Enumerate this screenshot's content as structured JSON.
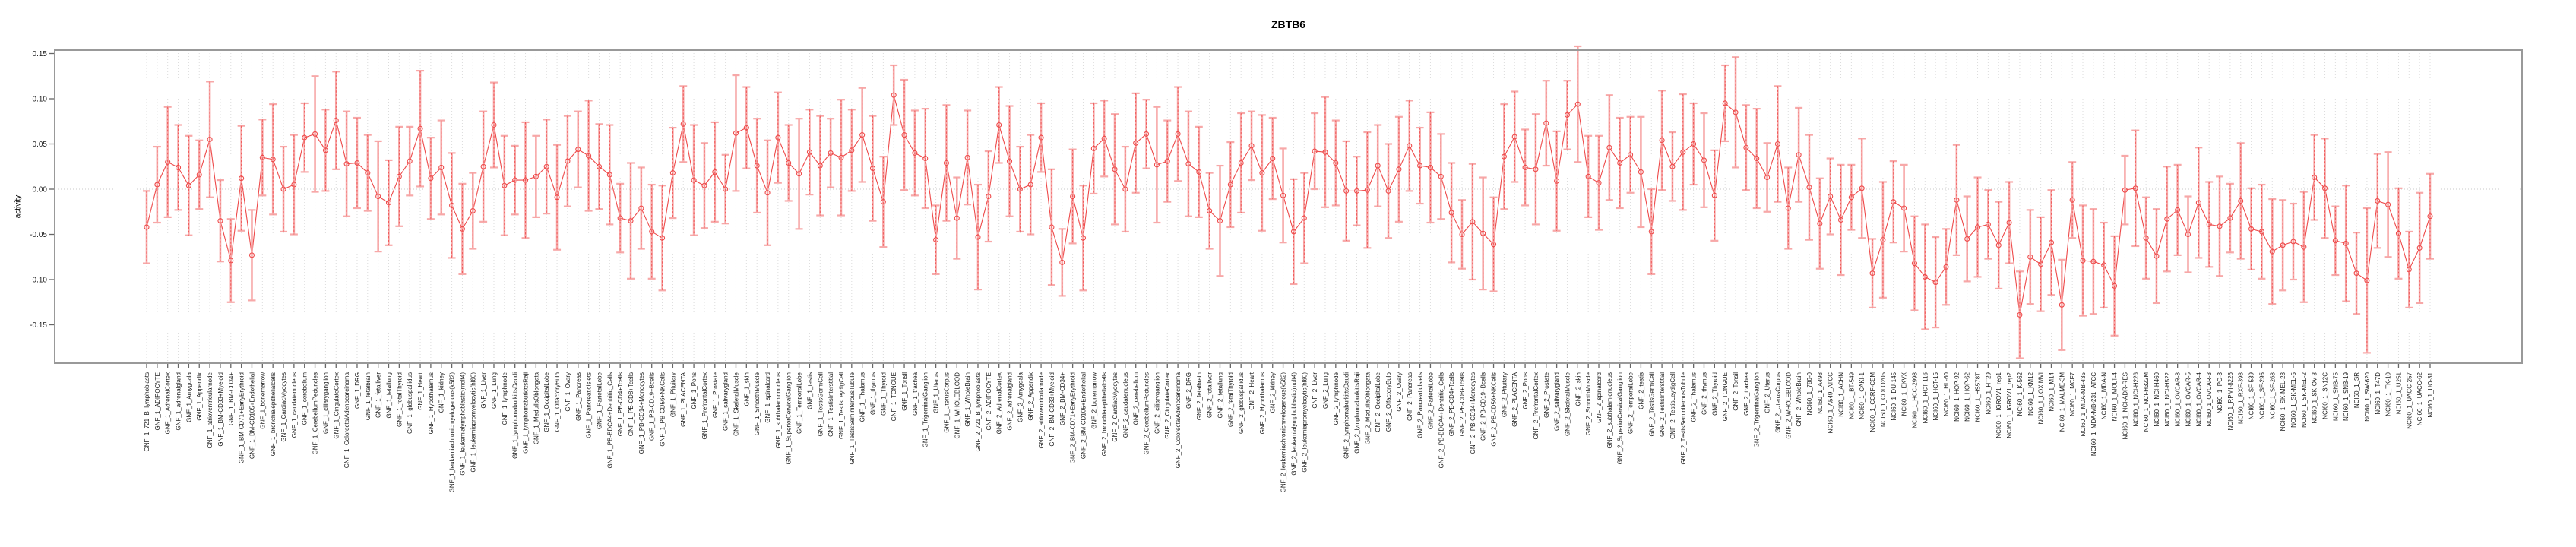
{
  "chart_data": {
    "type": "scatter",
    "title": "ZBTB6",
    "ylabel": "activity",
    "xlabel": "",
    "ylim": [
      -0.192,
      0.154
    ],
    "yticks": [
      0.15,
      0.1,
      0.05,
      0.0,
      -0.05,
      -0.1,
      -0.15
    ],
    "grid": "vertical dotted line at every category; horizontal dotted line at y=0",
    "legend_position": "none",
    "marker": "open-circle with error bars, points connected by line",
    "colors": {
      "line": "#ee4a4a",
      "bar": "#f7a8a8",
      "grid": "#dcdcdc",
      "zero": "#c9c9c9",
      "frame": "#999999",
      "axis": "#666666",
      "text": "#1a1a1a"
    },
    "labels": [
      "GNF_1_721_B_lymphoblasts",
      "GNF_1_ADIPOCYTE",
      "GNF_1_AdrenalCortex",
      "GNF_1_adrenalgland",
      "GNF_1_Amygdala",
      "GNF_1_Appendix",
      "GNF_1_atrioventricularnode",
      "GNF_1_BM-CD33+Myeloid",
      "GNF_1_BM-CD34+",
      "GNF_1_BM-CD71+EarlyErythroid",
      "GNF_1_BM-CD105+Endothelial",
      "GNF_1_bonemarrow",
      "GNF_1_bronchialepithelialcells",
      "GNF_1_CardiacMyocytes",
      "GNF_1_caudatenucleus",
      "GNF_1_cerebellum",
      "GNF_1_CerebellumPeduncles",
      "GNF_1_ciliaryganglion",
      "GNF_1_CingulateCortex",
      "GNF_1_ColorectalAdenocarcinoma",
      "GNF_1_DRG",
      "GNF_1_fetalbrain",
      "GNF_1_fetalliver",
      "GNF_1_fetallung",
      "GNF_1_fetalThyroid",
      "GNF_1_globuspallidus",
      "GNF_1_Heart",
      "GNF_1_Hypothalamus",
      "GNF_1_kidney",
      "GNF_1_leukemiachronicmyelogenous(k562)",
      "GNF_1_leukemialymphoblastic(molt4)",
      "GNF_1_leukemiapromyelocytic(hl60)",
      "GNF_1_Liver",
      "GNF_1_Lung",
      "GNF_1_lymphnode",
      "GNF_1_lymphomaburkittsDaudi",
      "GNF_1_lymphomaburkittsRaji",
      "GNF_1_MedullaOblongata",
      "GNF_1_OccipitalLobe",
      "GNF_1_OlfactoryBulb",
      "GNF_1_Ovary",
      "GNF_1_Pancreas",
      "GNF_1_PancreaticIslets",
      "GNF_1_ParietalLobe",
      "GNF_1_PB-BDCA4+Dentritic_Cells",
      "GNF_1_PB-CD4+Tcells",
      "GNF_1_PB-CD8+Tcells",
      "GNF_1_PB-CD14+Monocytes",
      "GNF_1_PB-CD19+Bcells",
      "GNF_1_PB-CD56+NKCells",
      "GNF_1_Pituitary",
      "GNF_1_PLACENTA",
      "GNF_1_Pons",
      "GNF_1_PrefrontalCortex",
      "GNF_1_Prostate",
      "GNF_1_salivarygland",
      "GNF_1_SkeletalMuscle",
      "GNF_1_skin",
      "GNF_1_SmoothMuscle",
      "GNF_1_spinalcord",
      "GNF_1_subthalamicnucleus",
      "GNF_1_SuperiorCervicalGanglion",
      "GNF_1_TemporalLobe",
      "GNF_1_testis",
      "GNF_1_TestisGermCell",
      "GNF_1_TestisInterstitial",
      "GNF_1_TestisLeydigCell",
      "GNF_1_TestisSeminiferousTubule",
      "GNF_1_Thalamus",
      "GNF_1_thymus",
      "GNF_1_Thyroid",
      "GNF_1_TONGUE",
      "GNF_1_Tonsil",
      "GNF_1_trachea",
      "GNF_1_TrigeminalGanglion",
      "GNF_1_Uterus",
      "GNF_1_UterusCorpus",
      "GNF_1_WHOLEBLOOD",
      "GNF_1_WholeBrain",
      "GNF_2_721_B_lymphoblasts",
      "GNF_2_ADIPOCYTE",
      "GNF_2_AdrenalCortex",
      "GNF_2_adrenalgland",
      "GNF_2_Amygdala",
      "GNF_2_Appendix",
      "GNF_2_atrioventricularnode",
      "GNF_2_BM-CD33+Myeloid",
      "GNF_2_BM-CD34+",
      "GNF_2_BM-CD71+EarlyErythroid",
      "GNF_2_BM-CD105+Endothelial",
      "GNF_2_bonemarrow",
      "GNF_2_bronchialepithelialcells",
      "GNF_2_CardiacMyocytes",
      "GNF_2_caudatenucleus",
      "GNF_2_cerebellum",
      "GNF_2_CerebellumPeduncles",
      "GNF_2_ciliaryganglion",
      "GNF_2_CingulateCortex",
      "GNF_2_ColorectalAdenocarcinoma",
      "GNF_2_DRG",
      "GNF_2_fetalbrain",
      "GNF_2_fetalliver",
      "GNF_2_fetallung",
      "GNF_2_fetalThyroid",
      "GNF_2_globuspallidus",
      "GNF_2_Heart",
      "GNF_2_Hypothalamus",
      "GNF_2_kidney",
      "GNF_2_leukemiachronicmyelogenous(k562)",
      "GNF_2_leukemialymphoblastic(molt4)",
      "GNF_2_leukemiapromyelocytic(hl60)",
      "GNF_2_Liver",
      "GNF_2_Lung",
      "GNF_2_lymphnode",
      "GNF_2_lymphomaburkittsDaudi",
      "GNF_2_lymphomaburkittsRaji",
      "GNF_2_MedullaOblongata",
      "GNF_2_OccipitalLobe",
      "GNF_2_OlfactoryBulb",
      "GNF_2_Ovary",
      "GNF_2_Pancreas",
      "GNF_2_PancreaticIslets",
      "GNF_2_ParietalLobe",
      "GNF_2_PB-BDCA4+Dentritic_Cells",
      "GNF_2_PB-CD4+Tcells",
      "GNF_2_PB-CD8+Tcells",
      "GNF_2_PB-CD14+Monocytes",
      "GNF_2_PB-CD19+Bcells",
      "GNF_2_PB-CD56+NKCells",
      "GNF_2_Pituitary",
      "GNF_2_PLACENTA",
      "GNF_2_Pons",
      "GNF_2_PrefrontalCortex",
      "GNF_2_Prostate",
      "GNF_2_salivarygland",
      "GNF_2_SkeletalMuscle",
      "GNF_2_skin",
      "GNF_2_SmoothMuscle",
      "GNF_2_spinalcord",
      "GNF_2_subthalamicnucleus",
      "GNF_2_SuperiorCervicalGanglion",
      "GNF_2_TemporalLobe",
      "GNF_2_testis",
      "GNF_2_TestisGermCell",
      "GNF_2_TestisInterstitial",
      "GNF_2_TestisLeydigCell",
      "GNF_2_TestisSeminiferousTubule",
      "GNF_2_Thalamus",
      "GNF_2_thymus",
      "GNF_2_Thyroid",
      "GNF_2_TONGUE",
      "GNF_2_Tonsil",
      "GNF_2_trachea",
      "GNF_2_TrigeminalGanglion",
      "GNF_2_Uterus",
      "GNF_2_UterusCorpus",
      "GNF_2_WHOLEBLOOD",
      "GNF_2_WholeBrain",
      "NCI60_1_786-0",
      "NCI60_1_A498",
      "NCI60_1_A549_ATCC",
      "NCI60_1_ACHN",
      "NCI60_1_BT-549",
      "NCI60_1_CAKI-1",
      "NCI60_1_CCRF-CEM",
      "NCI60_1_COLO205",
      "NCI60_1_DU-145",
      "NCI60_1_EKVX",
      "NCI60_1_HCC-2998",
      "NCI60_1_HCT-116",
      "NCI60_1_HCT-15",
      "NCI60_1_HL-60",
      "NCI60_1_HOP-92",
      "NCI60_1_HOP-62",
      "NCI60_1_HS578T",
      "NCI60_1_HT29",
      "NCI60_1_IGROV1_rep1",
      "NCI60_1_IGROV1_rep2",
      "NCI60_1_K-562",
      "NCI60_1_KM12",
      "NCI60_1_LOXIMVI",
      "NCI60_1_M14",
      "NCI60_1_MALME-3M",
      "NCI60_1_MCF7",
      "NCI60_1_MDA-MB-435",
      "NCI60_1_MDA-MB-231_ATCC",
      "NCI60_1_MDA-N",
      "NCI60_1_MOLT-4",
      "NCI60_1_NCI-ADR-RES",
      "NCI60_1_NCI-H226",
      "NCI60_1_NCI-H322M",
      "NCI60_1_NCI-H460",
      "NCI60_1_NCI-H522",
      "NCI60_1_OVCAR-8",
      "NCI60_1_OVCAR-5",
      "NCI60_1_OVCAR-4",
      "NCI60_1_OVCAR-3",
      "NCI60_1_PC-3",
      "NCI60_1_RPMI-8226",
      "NCI60_1_RXF-393",
      "NCI60_1_SF-539",
      "NCI60_1_SF-295",
      "NCI60_1_SF-268",
      "NCI60_1_SK-MEL-28",
      "NCI60_1_SK-MEL-5",
      "NCI60_1_SK-MEL-2",
      "NCI60_1_SK-OV-3",
      "NCI60_1_SN12C",
      "NCI60_1_SNB-75",
      "NCI60_1_SNB-19",
      "NCI60_1_SR",
      "NCI60_1_SW-620",
      "NCI60_1_T47D",
      "NCI60_1_TK-10",
      "NCI60_1_U251",
      "NCI60_1_UACC-257",
      "NCI60_1_UACC-62",
      "NCI60_1_UO-31"
    ],
    "values": [
      -0.042,
      0.005,
      0.03,
      0.024,
      0.004,
      0.016,
      0.055,
      -0.035,
      -0.079,
      0.012,
      -0.073,
      0.035,
      0.033,
      0.0,
      0.005,
      0.057,
      0.061,
      0.043,
      0.076,
      0.028,
      0.029,
      0.018,
      -0.008,
      -0.015,
      0.014,
      0.031,
      0.067,
      0.012,
      0.024,
      -0.018,
      -0.044,
      -0.024,
      0.025,
      0.071,
      0.004,
      0.01,
      0.01,
      0.014,
      0.025,
      -0.009,
      0.031,
      0.044,
      0.037,
      0.025,
      0.016,
      -0.032,
      -0.035,
      -0.021,
      -0.047,
      -0.054,
      0.018,
      0.072,
      0.01,
      0.004,
      0.019,
      0.0,
      0.062,
      0.068,
      0.026,
      -0.004,
      0.057,
      0.029,
      0.017,
      0.041,
      0.026,
      0.04,
      0.035,
      0.043,
      0.06,
      0.023,
      -0.014,
      0.104,
      0.06,
      0.04,
      0.034,
      -0.056,
      0.029,
      -0.032,
      0.035,
      -0.053,
      -0.008,
      0.071,
      0.031,
      0.0,
      0.005,
      0.057,
      -0.042,
      -0.081,
      -0.008,
      -0.054,
      0.045,
      0.056,
      0.022,
      0.0,
      0.051,
      0.061,
      0.027,
      0.031,
      0.061,
      0.028,
      0.019,
      -0.024,
      -0.035,
      0.005,
      0.029,
      0.048,
      0.018,
      0.034,
      -0.007,
      -0.047,
      -0.032,
      0.042,
      0.041,
      0.029,
      -0.002,
      -0.002,
      -0.001,
      0.026,
      -0.002,
      0.022,
      0.048,
      0.026,
      0.024,
      0.014,
      -0.026,
      -0.05,
      -0.036,
      -0.049,
      -0.061,
      0.036,
      0.058,
      0.024,
      0.022,
      0.073,
      0.009,
      0.082,
      0.094,
      0.014,
      0.007,
      0.046,
      0.029,
      0.038,
      0.019,
      -0.047,
      0.054,
      0.025,
      0.041,
      0.05,
      0.032,
      -0.007,
      0.095,
      0.085,
      0.046,
      0.034,
      0.013,
      0.05,
      -0.021,
      0.038,
      0.002,
      -0.038,
      -0.008,
      -0.034,
      -0.009,
      0.001,
      -0.093,
      -0.056,
      -0.014,
      -0.021,
      -0.082,
      -0.097,
      -0.103,
      -0.086,
      -0.012,
      -0.055,
      -0.042,
      -0.039,
      -0.062,
      -0.037,
      -0.139,
      -0.075,
      -0.083,
      -0.059,
      -0.128,
      -0.012,
      -0.079,
      -0.08,
      -0.084,
      -0.107,
      -0.001,
      0.001,
      -0.054,
      -0.074,
      -0.033,
      -0.023,
      -0.05,
      -0.015,
      -0.039,
      -0.041,
      -0.032,
      -0.013,
      -0.044,
      -0.047,
      -0.069,
      -0.062,
      -0.058,
      -0.064,
      0.013,
      0.001,
      -0.057,
      -0.06,
      -0.093,
      -0.101,
      -0.013,
      -0.017,
      -0.049,
      -0.089,
      -0.065,
      -0.03
    ],
    "errors": [
      0.04,
      0.042,
      0.061,
      0.047,
      0.055,
      0.038,
      0.064,
      0.045,
      0.046,
      0.058,
      0.05,
      0.042,
      0.061,
      0.047,
      0.055,
      0.038,
      0.064,
      0.045,
      0.054,
      0.058,
      0.05,
      0.042,
      0.061,
      0.047,
      0.055,
      0.038,
      0.064,
      0.045,
      0.052,
      0.058,
      0.05,
      0.042,
      0.061,
      0.047,
      0.055,
      0.038,
      0.064,
      0.045,
      0.052,
      0.058,
      0.05,
      0.042,
      0.061,
      0.047,
      0.055,
      0.038,
      0.064,
      0.045,
      0.052,
      0.058,
      0.05,
      0.042,
      0.061,
      0.047,
      0.055,
      0.038,
      0.064,
      0.045,
      0.052,
      0.058,
      0.05,
      0.042,
      0.061,
      0.047,
      0.055,
      0.038,
      0.064,
      0.045,
      0.052,
      0.058,
      0.05,
      0.033,
      0.061,
      0.047,
      0.055,
      0.038,
      0.064,
      0.045,
      0.052,
      0.058,
      0.05,
      0.042,
      0.061,
      0.047,
      0.055,
      0.038,
      0.064,
      0.037,
      0.052,
      0.058,
      0.05,
      0.042,
      0.061,
      0.047,
      0.055,
      0.038,
      0.064,
      0.045,
      0.052,
      0.058,
      0.05,
      0.042,
      0.061,
      0.047,
      0.055,
      0.038,
      0.064,
      0.045,
      0.052,
      0.058,
      0.05,
      0.042,
      0.061,
      0.047,
      0.055,
      0.038,
      0.064,
      0.045,
      0.052,
      0.058,
      0.05,
      0.042,
      0.061,
      0.047,
      0.055,
      0.038,
      0.064,
      0.062,
      0.052,
      0.058,
      0.05,
      0.042,
      0.061,
      0.047,
      0.055,
      0.038,
      0.064,
      0.045,
      0.052,
      0.058,
      0.05,
      0.042,
      0.061,
      0.047,
      0.055,
      0.038,
      0.064,
      0.045,
      0.052,
      0.05,
      0.042,
      0.061,
      0.047,
      0.055,
      0.038,
      0.064,
      0.045,
      0.052,
      0.058,
      0.05,
      0.042,
      0.061,
      0.036,
      0.055,
      0.038,
      0.064,
      0.045,
      0.048,
      0.052,
      0.058,
      0.05,
      0.042,
      0.061,
      0.047,
      0.055,
      0.038,
      0.048,
      0.045,
      0.048,
      0.052,
      0.052,
      0.058,
      0.05,
      0.042,
      0.061,
      0.058,
      0.047,
      0.055,
      0.038,
      0.064,
      0.045,
      0.052,
      0.058,
      0.05,
      0.042,
      0.061,
      0.047,
      0.055,
      0.038,
      0.064,
      0.045,
      0.052,
      0.058,
      0.05,
      0.042,
      0.061,
      0.047,
      0.055,
      0.038,
      0.064,
      0.045,
      0.08,
      0.052,
      0.058,
      0.05,
      0.042,
      0.061,
      0.047
    ]
  }
}
